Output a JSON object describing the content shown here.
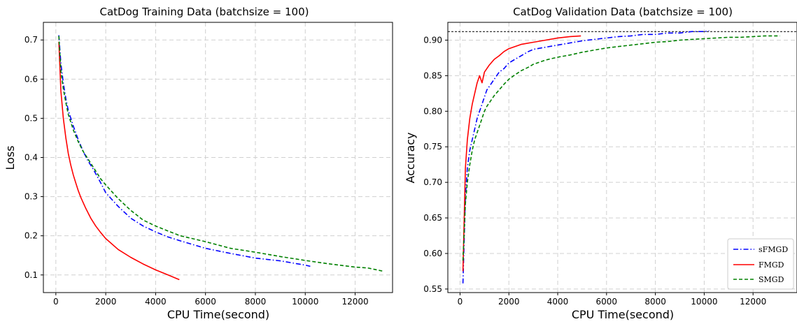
{
  "chart_data": [
    {
      "type": "line",
      "title": "CatDog Training Data (batchsize = 100)",
      "xlabel": "CPU Time(second)",
      "ylabel": "Loss",
      "xlim": [
        -500,
        13500
      ],
      "ylim": [
        0.055,
        0.745
      ],
      "xticks": [
        0,
        2000,
        4000,
        6000,
        8000,
        10000,
        12000
      ],
      "yticks": [
        0.1,
        0.2,
        0.3,
        0.4,
        0.5,
        0.6,
        0.7
      ],
      "xtick_labels": [
        "0",
        "2000",
        "4000",
        "6000",
        "8000",
        "10000",
        "12000"
      ],
      "ytick_labels": [
        "0.1",
        "0.2",
        "0.3",
        "0.4",
        "0.5",
        "0.6",
        "0.7"
      ],
      "grid": true,
      "series": [
        {
          "name": "sFMGD",
          "color": "#0000ff",
          "style": "dashdot",
          "x": [
            120,
            200,
            300,
            400,
            500,
            700,
            900,
            1100,
            1300,
            1500,
            1800,
            2000,
            2500,
            3000,
            3500,
            4000,
            4500,
            5000,
            6000,
            7000,
            8000,
            9000,
            10000,
            10200
          ],
          "y": [
            0.712,
            0.64,
            0.59,
            0.55,
            0.52,
            0.48,
            0.445,
            0.415,
            0.39,
            0.37,
            0.335,
            0.31,
            0.275,
            0.245,
            0.225,
            0.21,
            0.197,
            0.187,
            0.168,
            0.155,
            0.143,
            0.136,
            0.125,
            0.122
          ]
        },
        {
          "name": "FMGD",
          "color": "#ff0000",
          "style": "solid",
          "x": [
            120,
            200,
            300,
            400,
            500,
            600,
            700,
            800,
            900,
            1000,
            1200,
            1400,
            1600,
            1800,
            2000,
            2500,
            3000,
            3500,
            4000,
            4500,
            4950
          ],
          "y": [
            0.695,
            0.57,
            0.5,
            0.45,
            0.41,
            0.38,
            0.355,
            0.335,
            0.315,
            0.298,
            0.27,
            0.245,
            0.225,
            0.208,
            0.193,
            0.165,
            0.145,
            0.128,
            0.113,
            0.1,
            0.088
          ]
        },
        {
          "name": "SMGD",
          "color": "#008000",
          "style": "dashed",
          "x": [
            120,
            200,
            300,
            400,
            500,
            700,
            900,
            1100,
            1300,
            1500,
            1800,
            2000,
            2500,
            3000,
            3500,
            4000,
            4500,
            5000,
            6000,
            7000,
            8000,
            9000,
            10000,
            11000,
            12000,
            12500,
            13100
          ],
          "y": [
            0.71,
            0.62,
            0.575,
            0.54,
            0.51,
            0.47,
            0.44,
            0.415,
            0.395,
            0.375,
            0.345,
            0.33,
            0.295,
            0.265,
            0.24,
            0.225,
            0.212,
            0.2,
            0.185,
            0.168,
            0.158,
            0.147,
            0.137,
            0.128,
            0.12,
            0.118,
            0.11
          ]
        }
      ]
    },
    {
      "type": "line",
      "title": "CatDog Validation Data (batchsize = 100)",
      "xlabel": "CPU Time(second)",
      "ylabel": "Accuracy",
      "xlim": [
        -500,
        13800
      ],
      "ylim": [
        0.545,
        0.925
      ],
      "xticks": [
        0,
        2000,
        4000,
        6000,
        8000,
        10000,
        12000
      ],
      "yticks": [
        0.55,
        0.6,
        0.65,
        0.7,
        0.75,
        0.8,
        0.85,
        0.9
      ],
      "xtick_labels": [
        "0",
        "2000",
        "4000",
        "6000",
        "8000",
        "10000",
        "12000"
      ],
      "ytick_labels": [
        "0.55",
        "0.60",
        "0.65",
        "0.70",
        "0.75",
        "0.80",
        "0.85",
        "0.90"
      ],
      "grid": true,
      "hline": 0.912,
      "legend_position": "bottom-right",
      "series": [
        {
          "name": "sFMGD",
          "color": "#0000ff",
          "style": "dashdot",
          "x": [
            120,
            170,
            220,
            300,
            400,
            500,
            600,
            700,
            800,
            900,
            1000,
            1100,
            1200,
            1400,
            1600,
            1800,
            2000,
            2200,
            2500,
            2800,
            3000,
            3500,
            4000,
            4500,
            5000,
            5500,
            6000,
            6500,
            7000,
            7500,
            8000,
            8500,
            9000,
            9500,
            10000,
            10200
          ],
          "y": [
            0.558,
            0.62,
            0.68,
            0.72,
            0.745,
            0.76,
            0.775,
            0.79,
            0.8,
            0.81,
            0.82,
            0.83,
            0.835,
            0.845,
            0.855,
            0.86,
            0.868,
            0.872,
            0.878,
            0.884,
            0.887,
            0.89,
            0.893,
            0.896,
            0.899,
            0.901,
            0.903,
            0.905,
            0.906,
            0.908,
            0.908,
            0.91,
            0.91,
            0.912,
            0.912,
            0.913
          ]
        },
        {
          "name": "FMGD",
          "color": "#ff0000",
          "style": "solid",
          "x": [
            120,
            170,
            220,
            300,
            400,
            500,
            600,
            700,
            800,
            900,
            1000,
            1200,
            1400,
            1600,
            1800,
            2000,
            2500,
            3000,
            3500,
            4000,
            4500,
            4950
          ],
          "y": [
            0.575,
            0.65,
            0.72,
            0.76,
            0.79,
            0.81,
            0.825,
            0.84,
            0.85,
            0.84,
            0.855,
            0.865,
            0.873,
            0.878,
            0.884,
            0.888,
            0.894,
            0.897,
            0.9,
            0.903,
            0.905,
            0.906
          ]
        },
        {
          "name": "SMGD",
          "color": "#008000",
          "style": "dashed",
          "x": [
            120,
            170,
            220,
            300,
            400,
            500,
            600,
            700,
            800,
            900,
            1000,
            1100,
            1200,
            1400,
            1600,
            1800,
            2000,
            2200,
            2500,
            2800,
            3000,
            3500,
            4000,
            4500,
            5000,
            5500,
            6000,
            6500,
            7000,
            7500,
            8000,
            8500,
            9000,
            9500,
            10000,
            10500,
            11000,
            11500,
            12000,
            12500,
            13100
          ],
          "y": [
            0.59,
            0.63,
            0.67,
            0.7,
            0.725,
            0.745,
            0.76,
            0.77,
            0.78,
            0.79,
            0.8,
            0.807,
            0.812,
            0.822,
            0.83,
            0.838,
            0.845,
            0.85,
            0.857,
            0.862,
            0.866,
            0.872,
            0.876,
            0.879,
            0.883,
            0.886,
            0.889,
            0.891,
            0.893,
            0.895,
            0.897,
            0.898,
            0.9,
            0.901,
            0.902,
            0.903,
            0.904,
            0.904,
            0.905,
            0.906,
            0.906
          ]
        }
      ]
    }
  ]
}
